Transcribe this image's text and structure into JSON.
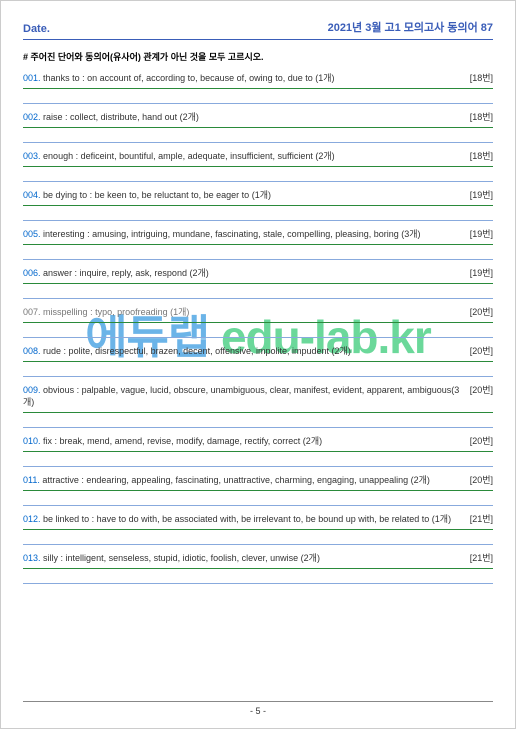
{
  "header": {
    "date_label": "Date.",
    "title": "2021년 3월 고1 모의고사  동의어 87"
  },
  "instruction": "# 주어진 단어와 동의어(유사어) 관계가 아닌 것을 모두 고르시오.",
  "questions": [
    {
      "num": "001.",
      "text": "thanks to : on account of, according to, because of, owing to, due to (1개)",
      "ref": "[18번]"
    },
    {
      "num": "002.",
      "text": "raise : collect, distribute, hand out (2개)",
      "ref": "[18번]"
    },
    {
      "num": "003.",
      "text": "enough : deficeint, bountiful, ample, adequate, insufficient, sufficient (2개)",
      "ref": "[18번]"
    },
    {
      "num": "004.",
      "text": "be dying to : be keen to, be reluctant to, be eager to (1개)",
      "ref": "[19번]"
    },
    {
      "num": "005.",
      "text": "interesting : amusing, intriguing, mundane, fascinating, stale, compelling, pleasing, boring (3개)",
      "ref": "[19번]"
    },
    {
      "num": "006.",
      "text": "answer : inquire, reply, ask, respond (2개)",
      "ref": "[19번]"
    },
    {
      "num": "007.",
      "text": "misspelling : typo, proofreading (1개)",
      "ref": "[20번]"
    },
    {
      "num": "008.",
      "text": "rude : polite, disrespectful, brazen, decent, offensive, impolite, impudent (2개)",
      "ref": "[20번]"
    },
    {
      "num": "009.",
      "text": "obvious : palpable, vague, lucid, obscure, unambiguous, clear, manifest, evident, apparent, ambiguous(3개)",
      "ref": "[20번]"
    },
    {
      "num": "010.",
      "text": "fix : break, mend, amend, revise, modify, damage, rectify, correct (2개)",
      "ref": "[20번]"
    },
    {
      "num": "011.",
      "text": "attractive : endearing, appealing, fascinating, unattractive, charming, engaging, unappealing (2개)",
      "ref": "[20번]"
    },
    {
      "num": "012.",
      "text": "be linked to : have to do with, be associated with, be irrelevant to, be bound up with, be related to (1개)",
      "ref": "[21번]"
    },
    {
      "num": "013.",
      "text": "silly : intelligent, senseless, stupid, idiotic, foolish, clever, unwise (2개)",
      "ref": "[21번]"
    }
  ],
  "watermark": {
    "kor": "에듀랩",
    "eng": " edu-lab.kr"
  },
  "footer": {
    "page": "- 5 -"
  },
  "colors": {
    "header_color": "#3a5db8",
    "green_line": "#2a8a3a",
    "blue_line": "#88aadd",
    "num_color": "#0066cc",
    "wm_kor": "#6bb4e8",
    "wm_eng": "#6bd89a"
  }
}
